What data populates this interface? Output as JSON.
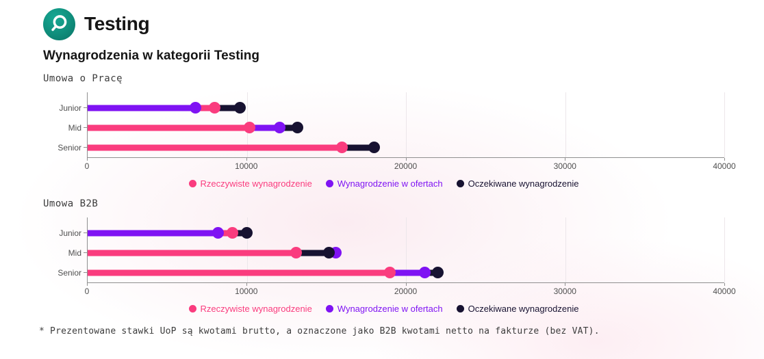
{
  "page": {
    "title": "Testing",
    "subtitle": "Wynagrodzenia w kategorii Testing",
    "footnote": "* Prezentowane stawki UoP są kwotami brutto, a oznaczone jako B2B kwotami netto na fakturze (bez VAT)."
  },
  "colors": {
    "actual": "#fa3c7e",
    "offers": "#7f13f3",
    "expected": "#171231",
    "logo_teal": "#0f8d7b",
    "axis": "#8f8f8f",
    "gridline": "#ece6ea"
  },
  "legend": [
    {
      "key": "actual",
      "label": "Rzeczywiste wynagrodzenie",
      "color": "#fa3c7e"
    },
    {
      "key": "offers",
      "label": "Wynagrodzenie w ofertach",
      "color": "#7f13f3"
    },
    {
      "key": "expected",
      "label": "Oczekiwane wynagrodzenie",
      "color": "#171231"
    }
  ],
  "chart_data": [
    {
      "type": "bar",
      "title": "Umowa o Pracę",
      "orientation": "horizontal",
      "categories": [
        "Junior",
        "Mid",
        "Senior"
      ],
      "series": [
        {
          "key": "actual",
          "name": "Rzeczywiste wynagrodzenie",
          "color": "#fa3c7e",
          "values": [
            8000,
            10200,
            16000
          ]
        },
        {
          "key": "offers",
          "name": "Wynagrodzenie w ofertach",
          "color": "#7f13f3",
          "values": [
            6800,
            12100,
            null
          ]
        },
        {
          "key": "expected",
          "name": "Oczekiwane wynagrodzenie",
          "color": "#171231",
          "values": [
            9600,
            13200,
            18000
          ]
        }
      ],
      "xlim": [
        0,
        40000
      ],
      "xticks": [
        0,
        10000,
        20000,
        30000,
        40000
      ],
      "grid": true,
      "legend_position": "bottom"
    },
    {
      "type": "bar",
      "title": "Umowa B2B",
      "orientation": "horizontal",
      "categories": [
        "Junior",
        "Mid",
        "Senior"
      ],
      "series": [
        {
          "key": "actual",
          "name": "Rzeczywiste wynagrodzenie",
          "color": "#fa3c7e",
          "values": [
            9100,
            13100,
            19000
          ]
        },
        {
          "key": "offers",
          "name": "Wynagrodzenie w ofertach",
          "color": "#7f13f3",
          "values": [
            8200,
            15600,
            21200
          ]
        },
        {
          "key": "expected",
          "name": "Oczekiwane wynagrodzenie",
          "color": "#171231",
          "values": [
            10000,
            15200,
            22000
          ]
        }
      ],
      "xlim": [
        0,
        40000
      ],
      "xticks": [
        0,
        10000,
        20000,
        30000,
        40000
      ],
      "grid": true,
      "legend_position": "bottom"
    }
  ]
}
